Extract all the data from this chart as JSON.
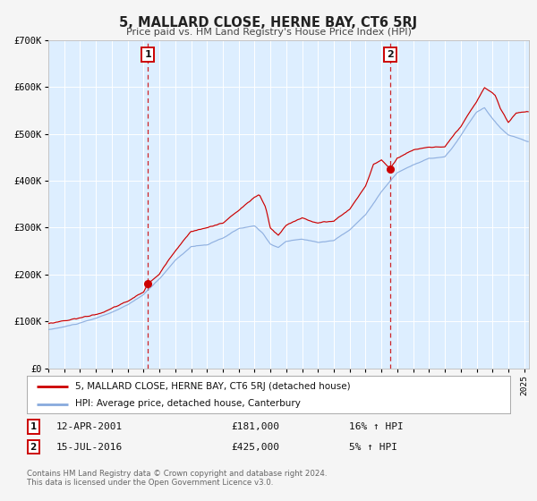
{
  "title": "5, MALLARD CLOSE, HERNE BAY, CT6 5RJ",
  "subtitle": "Price paid vs. HM Land Registry's House Price Index (HPI)",
  "background_color": "#ddeeff",
  "outer_bg_color": "#f5f5f5",
  "red_line_color": "#cc0000",
  "blue_line_color": "#88aadd",
  "xlim_start": 1995.0,
  "xlim_end": 2025.3,
  "ylim_min": 0,
  "ylim_max": 700000,
  "yticks": [
    0,
    100000,
    200000,
    300000,
    400000,
    500000,
    600000,
    700000
  ],
  "ytick_labels": [
    "£0",
    "£100K",
    "£200K",
    "£300K",
    "£400K",
    "£500K",
    "£600K",
    "£700K"
  ],
  "xticks": [
    1995,
    1996,
    1997,
    1998,
    1999,
    2000,
    2001,
    2002,
    2003,
    2004,
    2005,
    2006,
    2007,
    2008,
    2009,
    2010,
    2011,
    2012,
    2013,
    2014,
    2015,
    2016,
    2017,
    2018,
    2019,
    2020,
    2021,
    2022,
    2023,
    2024,
    2025
  ],
  "event1_x": 2001.28,
  "event1_y": 181000,
  "event1_label": "1",
  "event1_date": "12-APR-2001",
  "event1_price": "£181,000",
  "event1_hpi": "16% ↑ HPI",
  "event2_x": 2016.54,
  "event2_y": 425000,
  "event2_label": "2",
  "event2_date": "15-JUL-2016",
  "event2_price": "£425,000",
  "event2_hpi": "5% ↑ HPI",
  "legend_line1": "5, MALLARD CLOSE, HERNE BAY, CT6 5RJ (detached house)",
  "legend_line2": "HPI: Average price, detached house, Canterbury",
  "footer": "Contains HM Land Registry data © Crown copyright and database right 2024.\nThis data is licensed under the Open Government Licence v3.0.",
  "grid_color": "#ffffff",
  "annotation_box_color": "#cc0000"
}
